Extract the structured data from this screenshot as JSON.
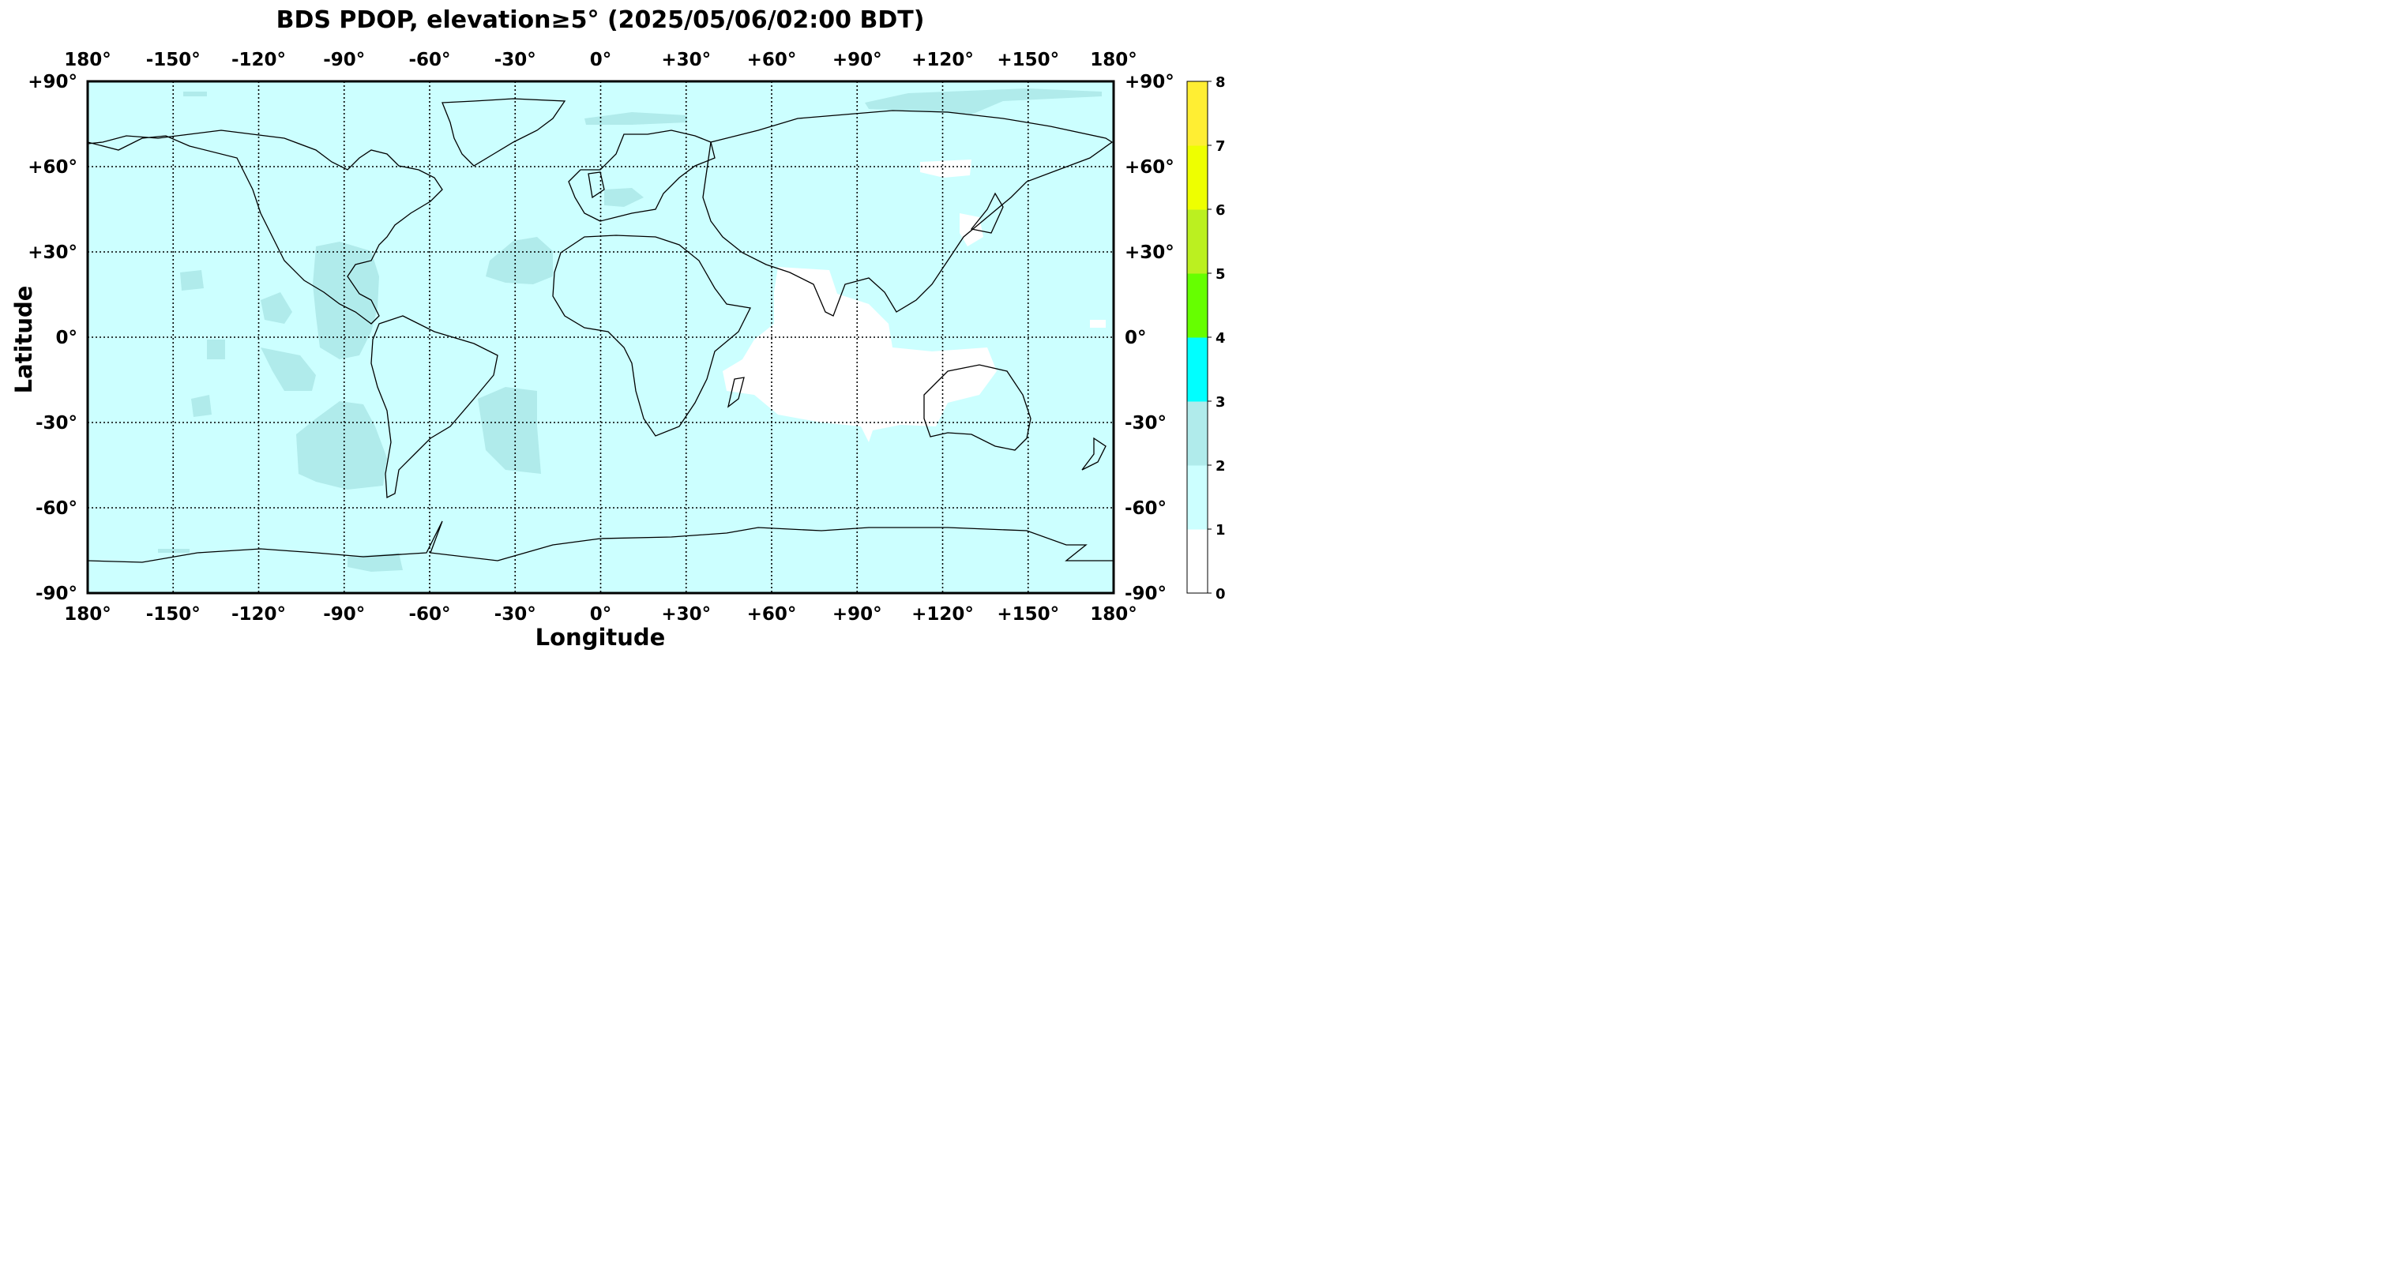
{
  "title": "BDS PDOP, elevation≥5° (2025/05/06/02:00 BDT)",
  "x_axis_label": "Longitude",
  "y_axis_label": "Latitude",
  "lon_ticks": [
    "180°",
    "-150°",
    "-120°",
    "-90°",
    "-60°",
    "-30°",
    "0°",
    "+30°",
    "+60°",
    "+90°",
    "+120°",
    "+150°",
    "180°"
  ],
  "lat_ticks": [
    "+90°",
    "+60°",
    "+30°",
    "0°",
    "-30°",
    "-60°",
    "-90°"
  ],
  "colorbar": {
    "ticks": [
      "0",
      "1",
      "2",
      "3",
      "4",
      "5",
      "6",
      "7",
      "8"
    ],
    "bins": [
      {
        "range": [
          0,
          1
        ],
        "color": "#ffffff"
      },
      {
        "range": [
          1,
          2
        ],
        "color": "#ccffff"
      },
      {
        "range": [
          2,
          3
        ],
        "color": "#b0ebeb"
      },
      {
        "range": [
          3,
          4
        ],
        "color": "#00ffff"
      },
      {
        "range": [
          4,
          5
        ],
        "color": "#66ff00"
      },
      {
        "range": [
          5,
          6
        ],
        "color": "#bbf020"
      },
      {
        "range": [
          6,
          7
        ],
        "color": "#eeff00"
      },
      {
        "range": [
          7,
          8
        ],
        "color": "#ffee33"
      }
    ]
  },
  "map_background_color": "#ccffff",
  "pdop_regions": [
    {
      "class": "1-2",
      "label": "PDOP 1-2",
      "description": "global background"
    },
    {
      "class": "2-3",
      "label": "PDOP 2-3",
      "areas": [
        "Central America / Gulf of Mexico",
        "North Atlantic (-25°, 25°)",
        "South Pacific west of Chile",
        "South Atlantic (-30°, -40°)",
        "Arctic north of Russia",
        "Central Pacific patches",
        "Antarctic coast patches"
      ]
    },
    {
      "class": "0-1",
      "label": "PDOP 0-1",
      "areas": [
        "Indian Ocean",
        "Western Australia / Timor Sea",
        "Japan region",
        "Near (+120°, +60°)",
        "West Pacific near equator"
      ]
    }
  ]
}
